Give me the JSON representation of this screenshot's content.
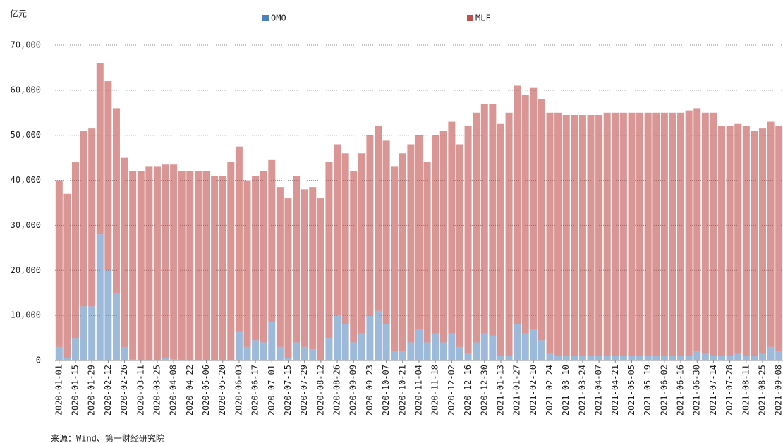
{
  "chart_data": {
    "type": "stacked-bar",
    "y_label": "亿元",
    "source": "来源：Wind、第一财经研究院",
    "categories": [
      "2020-01-01",
      null,
      "2020-01-15",
      null,
      "2020-01-29",
      null,
      "2020-02-12",
      null,
      "2020-02-26",
      null,
      "2020-03-11",
      null,
      "2020-03-25",
      null,
      "2020-04-08",
      null,
      "2020-04-22",
      null,
      "2020-05-06",
      null,
      "2020-05-20",
      null,
      "2020-06-03",
      null,
      "2020-06-17",
      null,
      "2020-07-01",
      null,
      "2020-07-15",
      null,
      "2020-07-29",
      null,
      "2020-08-12",
      null,
      "2020-08-26",
      null,
      "2020-09-09",
      null,
      "2020-09-23",
      null,
      "2020-10-07",
      null,
      "2020-10-21",
      null,
      "2020-11-04",
      null,
      "2020-11-18",
      null,
      "2020-12-02",
      null,
      "2020-12-16",
      null,
      "2020-12-30",
      null,
      "2021-01-13",
      null,
      "2021-01-27",
      null,
      "2021-02-10",
      null,
      "2021-02-24",
      null,
      "2021-03-10",
      null,
      "2021-03-24",
      null,
      "2021-04-07",
      null,
      "2021-04-21",
      null,
      "2021-05-05",
      null,
      "2021-05-19",
      null,
      "2021-06-02",
      null,
      "2021-06-16",
      null,
      "2021-06-30",
      null,
      "2021-07-14",
      null,
      "2021-07-28",
      null,
      "2021-08-11",
      null,
      "2021-08-25",
      null,
      "2021-09-08"
    ],
    "series": [
      {
        "name": "OMO",
        "color": "#4f81bd",
        "values": [
          3000,
          500,
          5000,
          12000,
          12000,
          28000,
          20000,
          15000,
          3000,
          200,
          0,
          0,
          0,
          500,
          300,
          0,
          0,
          0,
          0,
          0,
          0,
          0,
          6500,
          3000,
          4500,
          4000,
          8500,
          3000,
          500,
          4000,
          3000,
          2500,
          0,
          5000,
          10000,
          8000,
          4000,
          6000,
          10000,
          11000,
          8000,
          2000,
          2000,
          4000,
          7000,
          4000,
          6000,
          4000,
          6000,
          3000,
          1500,
          4000,
          6000,
          5500,
          1000,
          1000,
          8000,
          6000,
          7000,
          4500,
          1500,
          1000,
          1000,
          1000,
          1000,
          1000,
          1000,
          1000,
          1000,
          1000,
          1000,
          1000,
          1000,
          1000,
          1000,
          1000,
          1000,
          1000,
          2000,
          1500,
          1000,
          1000,
          1000,
          1500,
          1000,
          1000,
          1500,
          3000,
          2000
        ]
      },
      {
        "name": "MLF",
        "color": "#c0504d",
        "values": [
          37000,
          36500,
          39000,
          39000,
          39500,
          38000,
          42000,
          41000,
          42000,
          41800,
          42000,
          43000,
          43000,
          43000,
          43200,
          42000,
          42000,
          42000,
          42000,
          41000,
          41000,
          44000,
          41000,
          37000,
          36500,
          38000,
          36000,
          35500,
          35500,
          37000,
          35000,
          36000,
          36000,
          39000,
          38000,
          38000,
          38000,
          40000,
          40000,
          41000,
          40800,
          41000,
          44000,
          44000,
          43000,
          40000,
          44000,
          47000,
          47000,
          45000,
          50500,
          51000,
          51000,
          51500,
          51500,
          54000,
          53000,
          53000,
          53500,
          53500,
          53500,
          54000,
          53500,
          53500,
          53500,
          53500,
          53500,
          54000,
          54000,
          54000,
          54000,
          54000,
          54000,
          54000,
          54000,
          54000,
          54000,
          54500,
          54000,
          53500,
          54000,
          51000,
          51000,
          51000,
          51000,
          50000,
          50000,
          50000,
          50000
        ]
      }
    ],
    "ylim": [
      0,
      70000
    ],
    "yticks": [
      0,
      {
        "value": 10000,
        "label": "10,000"
      },
      {
        "value": 20000,
        "label": "20,000"
      },
      {
        "value": 30000,
        "label": "30,000"
      },
      {
        "value": 40000,
        "label": "40,000"
      },
      {
        "value": 50000,
        "label": "50,000"
      },
      {
        "value": 60000,
        "label": "60,000"
      },
      {
        "value": 70000,
        "label": "70,000"
      }
    ],
    "grid": true
  }
}
